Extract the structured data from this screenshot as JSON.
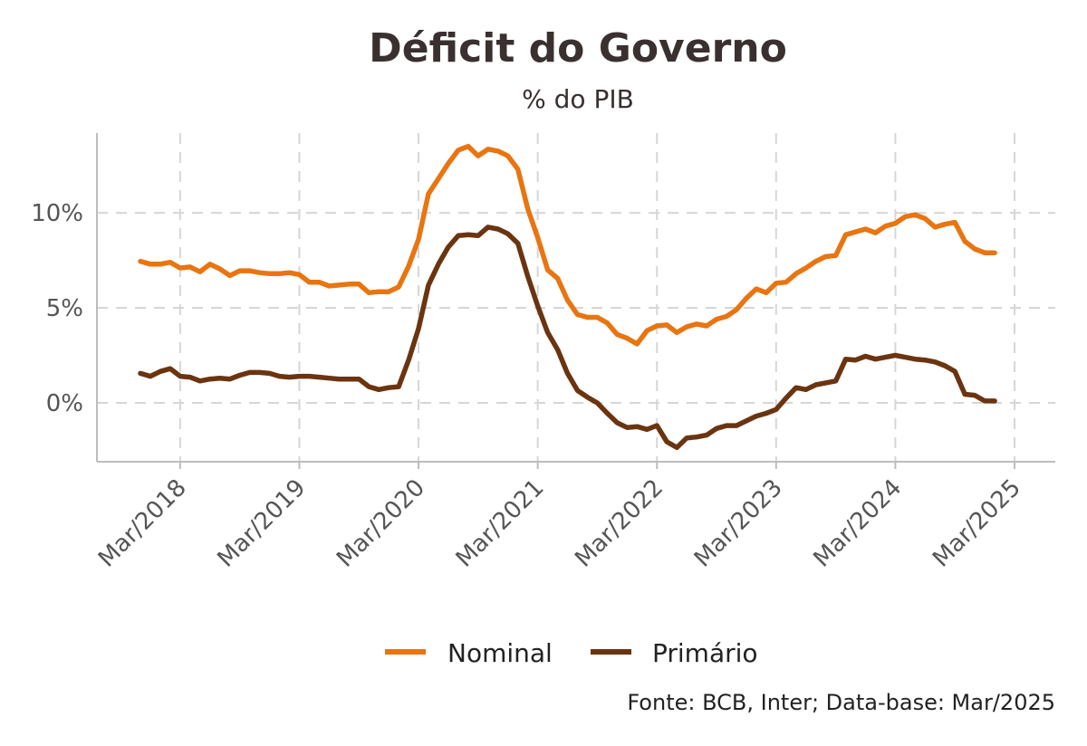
{
  "chart_data": {
    "type": "line",
    "title": "Déficit do Governo",
    "subtitle": "% do PIB",
    "caption": "Fonte: BCB, Inter; Data-base: Mar/2025",
    "legend_position": "bottom",
    "grid": true,
    "x_start": "2017-11",
    "x_end": "2025-03",
    "ylim": [
      -3.1,
      14.2
    ],
    "y_ticks": [
      0,
      5,
      10
    ],
    "y_tick_labels": [
      "0%",
      "5%",
      "10%"
    ],
    "x_ticks": [
      "2018-03",
      "2019-03",
      "2020-03",
      "2021-03",
      "2022-03",
      "2023-03",
      "2024-03",
      "2025-03"
    ],
    "x_tick_labels": [
      "Mar/2018",
      "Mar/2019",
      "Mar/2020",
      "Mar/2021",
      "Mar/2022",
      "Mar/2023",
      "Mar/2024",
      "Mar/2025"
    ],
    "series": [
      {
        "name": "Nominal",
        "color": "#E87511",
        "values": [
          7.45,
          7.3,
          7.3,
          7.4,
          7.1,
          7.15,
          6.9,
          7.3,
          7.05,
          6.7,
          6.95,
          6.95,
          6.85,
          6.8,
          6.8,
          6.85,
          6.75,
          6.35,
          6.35,
          6.15,
          6.2,
          6.25,
          6.25,
          5.8,
          5.85,
          5.85,
          6.1,
          7.2,
          8.6,
          11.0,
          11.8,
          12.6,
          13.3,
          13.5,
          13.0,
          13.35,
          13.25,
          13.0,
          12.3,
          10.2,
          8.7,
          7.0,
          6.55,
          5.4,
          4.65,
          4.5,
          4.5,
          4.2,
          3.6,
          3.4,
          3.1,
          3.8,
          4.05,
          4.1,
          3.7,
          4.0,
          4.15,
          4.05,
          4.4,
          4.55,
          4.9,
          5.5,
          6.0,
          5.8,
          6.3,
          6.35,
          6.8,
          7.1,
          7.45,
          7.7,
          7.75,
          8.85,
          9.0,
          9.15,
          8.95,
          9.3,
          9.45,
          9.8,
          9.9,
          9.7,
          9.25,
          9.4,
          9.5,
          8.5,
          8.1,
          7.9,
          7.9
        ]
      },
      {
        "name": "Primário",
        "color": "#6B3410",
        "values": [
          1.55,
          1.4,
          1.65,
          1.8,
          1.4,
          1.35,
          1.15,
          1.25,
          1.3,
          1.25,
          1.45,
          1.6,
          1.6,
          1.55,
          1.4,
          1.35,
          1.4,
          1.4,
          1.35,
          1.3,
          1.25,
          1.25,
          1.25,
          0.85,
          0.7,
          0.8,
          0.85,
          2.25,
          3.9,
          6.2,
          7.3,
          8.2,
          8.8,
          8.85,
          8.8,
          9.25,
          9.15,
          8.9,
          8.4,
          6.65,
          5.1,
          3.7,
          2.8,
          1.55,
          0.65,
          0.3,
          0.0,
          -0.55,
          -1.05,
          -1.3,
          -1.25,
          -1.4,
          -1.2,
          -2.05,
          -2.35,
          -1.85,
          -1.8,
          -1.7,
          -1.35,
          -1.2,
          -1.2,
          -0.95,
          -0.7,
          -0.55,
          -0.35,
          0.25,
          0.8,
          0.7,
          0.95,
          1.05,
          1.15,
          2.3,
          2.25,
          2.45,
          2.3,
          2.4,
          2.5,
          2.4,
          2.3,
          2.25,
          2.15,
          1.95,
          1.65,
          0.45,
          0.4,
          0.1,
          0.1
        ]
      }
    ]
  }
}
